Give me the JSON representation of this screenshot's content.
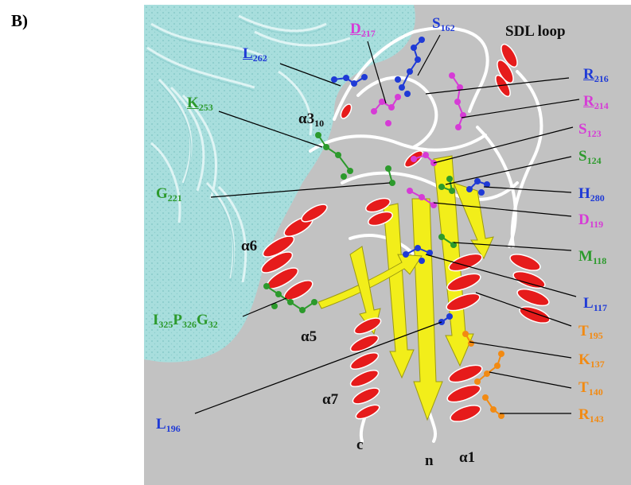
{
  "panel_label": "B)",
  "colors": {
    "background": "#c2c2c2",
    "surface": "#a8dedd",
    "helix": "#e61b1b",
    "strand": "#f2ee1a",
    "coil": "#ffffff",
    "blue": "#1f3ad6",
    "magenta": "#d63bd6",
    "green": "#2c9a2c",
    "orange": "#f28a12",
    "text": "#111111"
  },
  "structure_labels": {
    "sdl_loop": "SDL loop",
    "a3_10": "α3",
    "a3_10_sub": "10",
    "a6": "α6",
    "a5": "α5",
    "a7": "α7",
    "a1": "α1",
    "c_term": "c",
    "n_term": "n"
  },
  "residues": {
    "L262": {
      "name": "L",
      "num": "262",
      "color": "blue"
    },
    "D217": {
      "name": "D",
      "num": "217",
      "color": "magenta"
    },
    "S162": {
      "name": "S",
      "num": "162",
      "color": "blue"
    },
    "R216": {
      "name": "R",
      "num": "216",
      "color": "blue"
    },
    "K253": {
      "name": "K",
      "num": "253",
      "color": "green"
    },
    "R214": {
      "name": "R",
      "num": "214",
      "color": "magenta"
    },
    "S123": {
      "name": "S",
      "num": "123",
      "color": "magenta"
    },
    "S124": {
      "name": "S",
      "num": "124",
      "color": "green"
    },
    "G221": {
      "name": "G",
      "num": "221",
      "color": "green"
    },
    "H280": {
      "name": "H",
      "num": "280",
      "color": "blue"
    },
    "D119": {
      "name": "D",
      "num": "119",
      "color": "magenta"
    },
    "M118": {
      "name": "M",
      "num": "118",
      "color": "green"
    },
    "L117": {
      "name": "L",
      "num": "117",
      "color": "blue"
    },
    "T195": {
      "name": "T",
      "num": "195",
      "color": "orange"
    },
    "K137": {
      "name": "K",
      "num": "137",
      "color": "orange"
    },
    "T140": {
      "name": "T",
      "num": "140",
      "color": "orange"
    },
    "R143": {
      "name": "R",
      "num": "143",
      "color": "orange"
    },
    "L196": {
      "name": "L",
      "num": "196",
      "color": "blue"
    },
    "IPG": {
      "color": "green",
      "parts": [
        {
          "name": "I",
          "num": "325"
        },
        {
          "name": "P",
          "num": "326"
        },
        {
          "name": "G",
          "num": "32"
        }
      ]
    }
  }
}
